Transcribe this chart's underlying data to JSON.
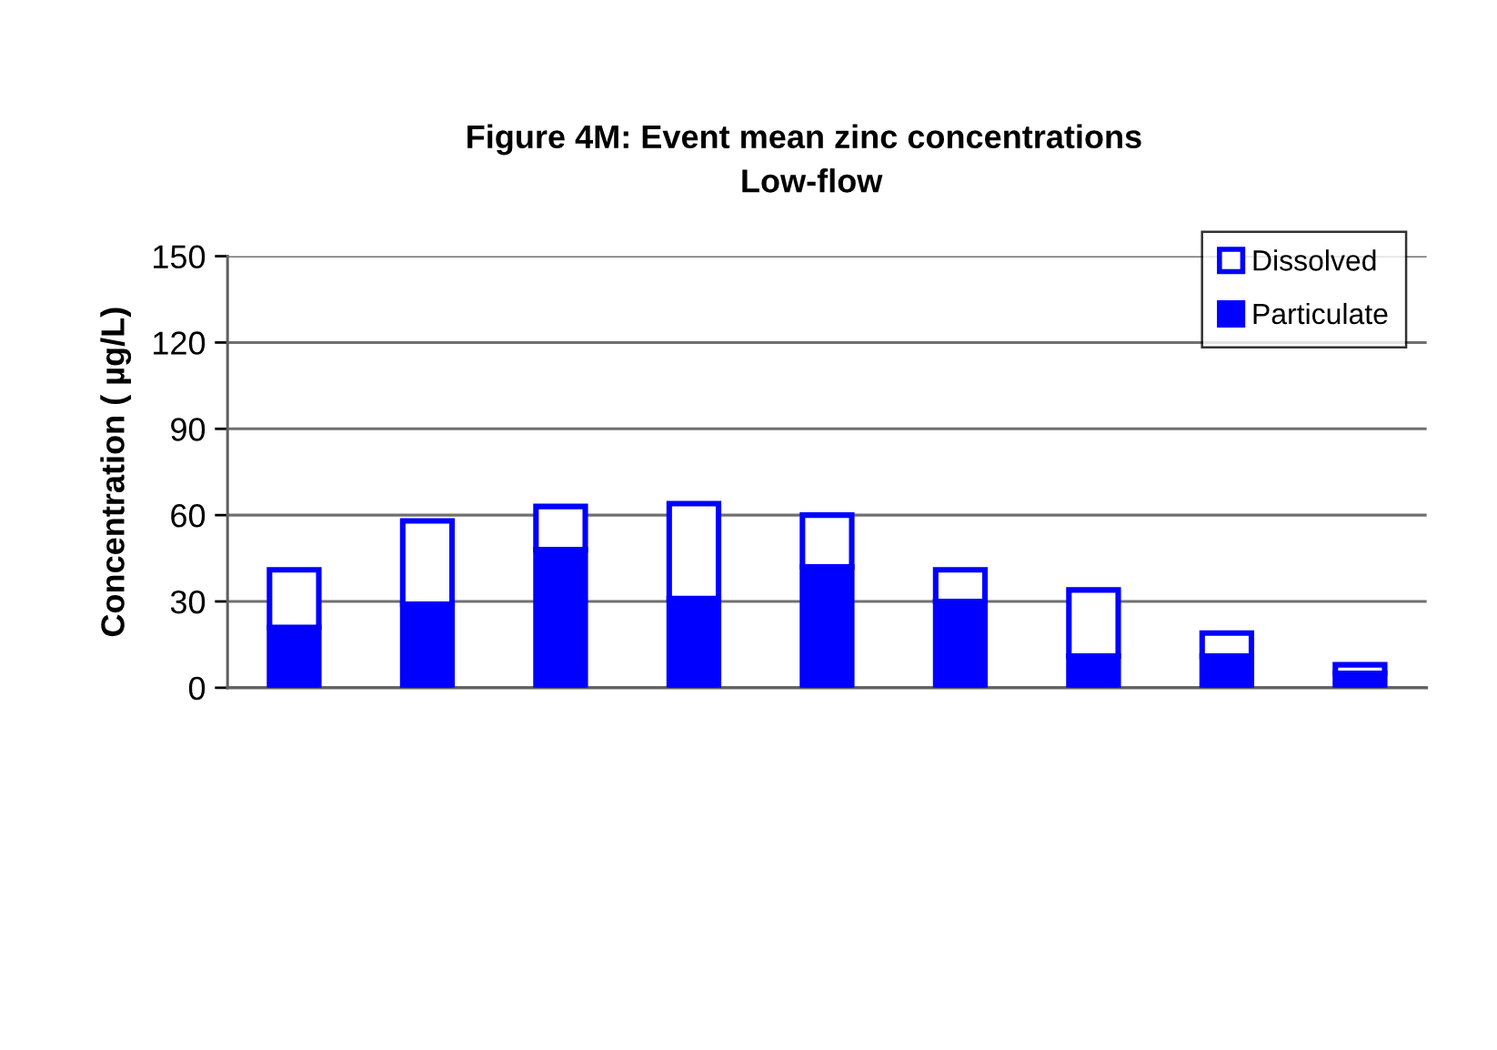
{
  "chart_data": {
    "type": "bar",
    "title": "Figure 4M: Event mean zinc concentrations",
    "subtitle": "Low-flow",
    "ylabel": "Concentration ( µg/L)",
    "categories": [
      null,
      null,
      null,
      null,
      null,
      null,
      null,
      null,
      null
    ],
    "series": [
      {
        "name": "Particulate",
        "color": "#0000ff",
        "values": [
          21,
          29,
          48,
          31,
          42,
          30,
          11,
          11,
          5
        ]
      },
      {
        "name": "Dissolved",
        "color": "#ffffff",
        "values": [
          20,
          29,
          15,
          33,
          18,
          11,
          23,
          8,
          3
        ]
      }
    ],
    "stacked": true,
    "ylim": [
      0,
      150
    ],
    "yticks": [
      0,
      30,
      60,
      90,
      120,
      150
    ],
    "grid": "y",
    "legend": "top right"
  }
}
